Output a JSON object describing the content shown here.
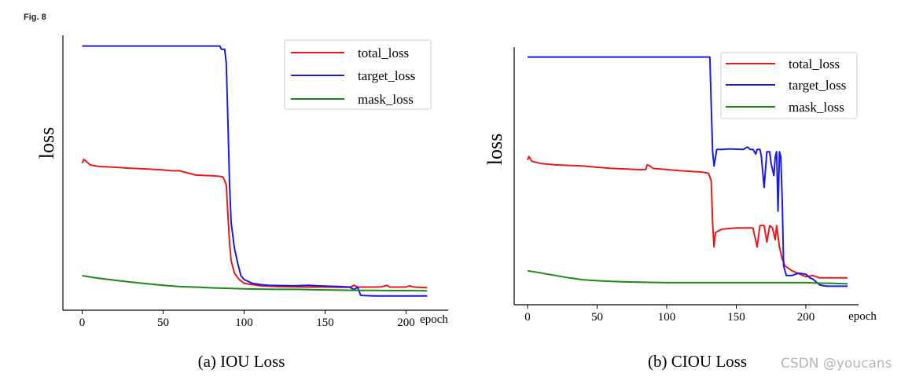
{
  "figure_label": "Fig. 8",
  "watermark": "CSDN @youcans",
  "chart_data": [
    {
      "type": "line",
      "caption": "(a) IOU Loss",
      "xlabel": "epoch",
      "ylabel": "loss",
      "xlim": [
        0,
        210
      ],
      "ylim": [
        0,
        1
      ],
      "xticks": [
        0,
        50,
        100,
        150,
        200
      ],
      "yticks": [],
      "grid": false,
      "legend_position": "top-right",
      "series": [
        {
          "name": "total_loss",
          "color": "#e8191d",
          "values": [
            [
              0,
              0.535
            ],
            [
              1,
              0.55
            ],
            [
              2,
              0.545
            ],
            [
              5,
              0.528
            ],
            [
              10,
              0.522
            ],
            [
              20,
              0.519
            ],
            [
              30,
              0.515
            ],
            [
              40,
              0.512
            ],
            [
              50,
              0.508
            ],
            [
              55,
              0.505
            ],
            [
              60,
              0.505
            ],
            [
              70,
              0.488
            ],
            [
              80,
              0.485
            ],
            [
              85,
              0.483
            ],
            [
              87,
              0.48
            ],
            [
              89,
              0.45
            ],
            [
              90,
              0.33
            ],
            [
              91,
              0.22
            ],
            [
              92,
              0.15
            ],
            [
              94,
              0.1
            ],
            [
              97,
              0.075
            ],
            [
              100,
              0.06
            ],
            [
              110,
              0.05
            ],
            [
              120,
              0.047
            ],
            [
              130,
              0.046
            ],
            [
              140,
              0.045
            ],
            [
              150,
              0.045
            ],
            [
              160,
              0.044
            ],
            [
              165,
              0.044
            ],
            [
              168,
              0.052
            ],
            [
              170,
              0.045
            ],
            [
              180,
              0.045
            ],
            [
              185,
              0.046
            ],
            [
              188,
              0.052
            ],
            [
              190,
              0.045
            ],
            [
              200,
              0.045
            ],
            [
              202,
              0.05
            ],
            [
              205,
              0.045
            ],
            [
              213,
              0.043
            ]
          ]
        },
        {
          "name": "target_loss",
          "color": "#1a1ae6",
          "values": [
            [
              0,
              0.998
            ],
            [
              20,
              0.998
            ],
            [
              40,
              0.998
            ],
            [
              60,
              0.998
            ],
            [
              80,
              0.998
            ],
            [
              85,
              0.998
            ],
            [
              86,
              0.985
            ],
            [
              88,
              0.985
            ],
            [
              89,
              0.93
            ],
            [
              90,
              0.7
            ],
            [
              91,
              0.45
            ],
            [
              92,
              0.3
            ],
            [
              94,
              0.2
            ],
            [
              96,
              0.14
            ],
            [
              98,
              0.09
            ],
            [
              100,
              0.075
            ],
            [
              105,
              0.06
            ],
            [
              110,
              0.055
            ],
            [
              115,
              0.052
            ],
            [
              130,
              0.05
            ],
            [
              140,
              0.052
            ],
            [
              145,
              0.05
            ],
            [
              160,
              0.047
            ],
            [
              165,
              0.045
            ],
            [
              168,
              0.035
            ],
            [
              170,
              0.045
            ],
            [
              172,
              0.012
            ],
            [
              180,
              0.01
            ],
            [
              200,
              0.01
            ],
            [
              213,
              0.01
            ]
          ]
        },
        {
          "name": "mask_loss",
          "color": "#1a8a1a",
          "values": [
            [
              0,
              0.09
            ],
            [
              5,
              0.085
            ],
            [
              10,
              0.08
            ],
            [
              20,
              0.072
            ],
            [
              30,
              0.065
            ],
            [
              40,
              0.058
            ],
            [
              50,
              0.052
            ],
            [
              60,
              0.047
            ],
            [
              70,
              0.045
            ],
            [
              80,
              0.042
            ],
            [
              90,
              0.04
            ],
            [
              100,
              0.038
            ],
            [
              110,
              0.037
            ],
            [
              120,
              0.036
            ],
            [
              130,
              0.036
            ],
            [
              140,
              0.035
            ],
            [
              150,
              0.034
            ],
            [
              160,
              0.033
            ],
            [
              170,
              0.032
            ],
            [
              180,
              0.032
            ],
            [
              190,
              0.031
            ],
            [
              200,
              0.031
            ],
            [
              213,
              0.03
            ]
          ]
        }
      ]
    },
    {
      "type": "line",
      "caption": "(b) CIOU Loss",
      "xlabel": "epoch",
      "ylabel": "loss",
      "xlim": [
        0,
        230
      ],
      "ylim": [
        0,
        1
      ],
      "xticks": [
        0,
        50,
        100,
        150,
        200
      ],
      "yticks": [],
      "grid": false,
      "legend_position": "top-right",
      "series": [
        {
          "name": "total_loss",
          "color": "#e8191d",
          "values": [
            [
              0,
              0.565
            ],
            [
              1,
              0.58
            ],
            [
              3,
              0.56
            ],
            [
              10,
              0.55
            ],
            [
              20,
              0.545
            ],
            [
              40,
              0.54
            ],
            [
              60,
              0.53
            ],
            [
              80,
              0.525
            ],
            [
              85,
              0.525
            ],
            [
              86,
              0.545
            ],
            [
              88,
              0.54
            ],
            [
              90,
              0.53
            ],
            [
              110,
              0.52
            ],
            [
              125,
              0.515
            ],
            [
              130,
              0.51
            ],
            [
              132,
              0.48
            ],
            [
              133,
              0.3
            ],
            [
              134,
              0.2
            ],
            [
              135,
              0.26
            ],
            [
              138,
              0.27
            ],
            [
              140,
              0.275
            ],
            [
              150,
              0.28
            ],
            [
              160,
              0.28
            ],
            [
              162,
              0.28
            ],
            [
              165,
              0.2
            ],
            [
              167,
              0.29
            ],
            [
              170,
              0.29
            ],
            [
              172,
              0.22
            ],
            [
              174,
              0.29
            ],
            [
              176,
              0.28
            ],
            [
              178,
              0.23
            ],
            [
              179,
              0.29
            ],
            [
              181,
              0.2
            ],
            [
              183,
              0.15
            ],
            [
              185,
              0.12
            ],
            [
              190,
              0.1
            ],
            [
              200,
              0.075
            ],
            [
              205,
              0.08
            ],
            [
              210,
              0.07
            ],
            [
              220,
              0.07
            ],
            [
              230,
              0.07
            ]
          ]
        },
        {
          "name": "target_loss",
          "color": "#1a1ae6",
          "values": [
            [
              0,
              0.998
            ],
            [
              40,
              0.998
            ],
            [
              80,
              0.998
            ],
            [
              120,
              0.998
            ],
            [
              131,
              0.998
            ],
            [
              132,
              0.8
            ],
            [
              133,
              0.6
            ],
            [
              134,
              0.54
            ],
            [
              136,
              0.61
            ],
            [
              140,
              0.61
            ],
            [
              145,
              0.612
            ],
            [
              155,
              0.61
            ],
            [
              158,
              0.62
            ],
            [
              160,
              0.61
            ],
            [
              162,
              0.61
            ],
            [
              164,
              0.59
            ],
            [
              165,
              0.61
            ],
            [
              167,
              0.61
            ],
            [
              168,
              0.58
            ],
            [
              170,
              0.45
            ],
            [
              172,
              0.6
            ],
            [
              174,
              0.6
            ],
            [
              175,
              0.55
            ],
            [
              177,
              0.5
            ],
            [
              178,
              0.58
            ],
            [
              179,
              0.6
            ],
            [
              180,
              0.35
            ],
            [
              181,
              0.6
            ],
            [
              182,
              0.58
            ],
            [
              183,
              0.4
            ],
            [
              184,
              0.12
            ],
            [
              186,
              0.08
            ],
            [
              190,
              0.08
            ],
            [
              195,
              0.09
            ],
            [
              200,
              0.085
            ],
            [
              203,
              0.07
            ],
            [
              205,
              0.065
            ],
            [
              210,
              0.04
            ],
            [
              215,
              0.035
            ],
            [
              220,
              0.035
            ],
            [
              230,
              0.035
            ]
          ]
        },
        {
          "name": "mask_loss",
          "color": "#1a8a1a",
          "values": [
            [
              0,
              0.1
            ],
            [
              5,
              0.095
            ],
            [
              10,
              0.09
            ],
            [
              20,
              0.08
            ],
            [
              30,
              0.07
            ],
            [
              40,
              0.062
            ],
            [
              50,
              0.058
            ],
            [
              60,
              0.055
            ],
            [
              70,
              0.053
            ],
            [
              80,
              0.052
            ],
            [
              100,
              0.05
            ],
            [
              120,
              0.05
            ],
            [
              140,
              0.05
            ],
            [
              160,
              0.05
            ],
            [
              180,
              0.05
            ],
            [
              200,
              0.05
            ],
            [
              210,
              0.048
            ],
            [
              220,
              0.047
            ],
            [
              230,
              0.045
            ]
          ]
        }
      ]
    }
  ]
}
